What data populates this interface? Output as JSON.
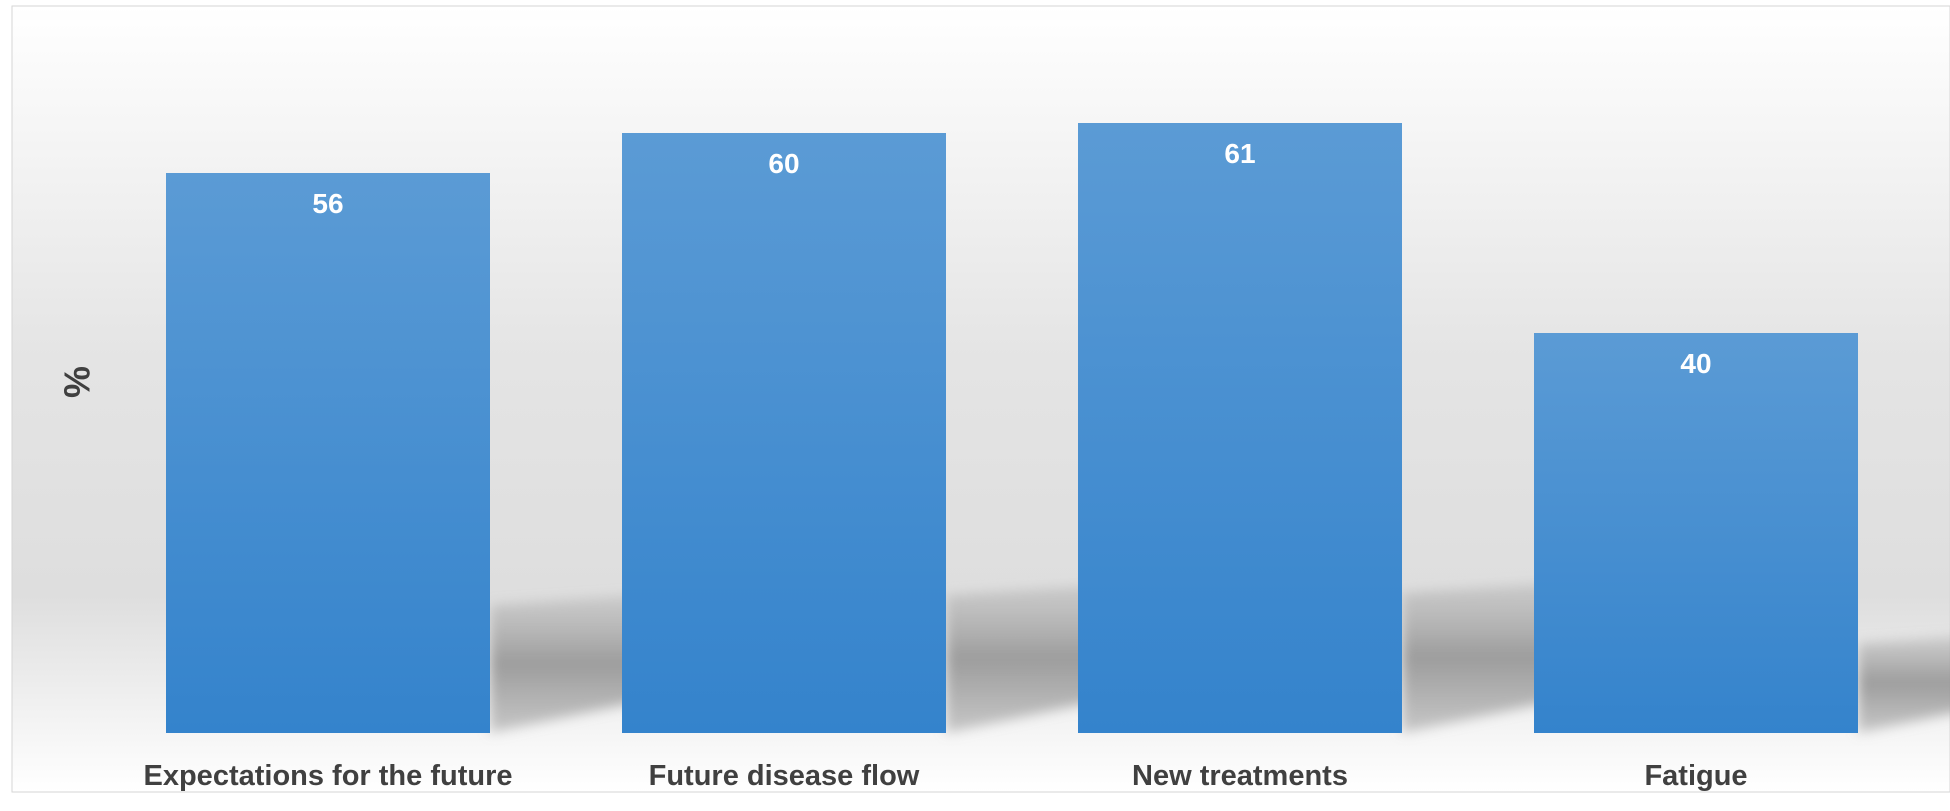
{
  "chart_data": {
    "type": "bar",
    "categories": [
      "Expectations for the future",
      "Future disease flow",
      "New treatments",
      "Fatigue"
    ],
    "values": [
      56,
      60,
      61,
      40
    ],
    "title": "",
    "xlabel": "",
    "ylabel": "%",
    "ylim": [
      0,
      70
    ],
    "grid": false,
    "data_labels": true,
    "colors": {
      "bar_top": "#5b9bd5",
      "bar_bottom": "#3483cc",
      "value_label": "#ffffff",
      "axis_text": "#404040",
      "shadow": "#8f8f8f"
    }
  }
}
